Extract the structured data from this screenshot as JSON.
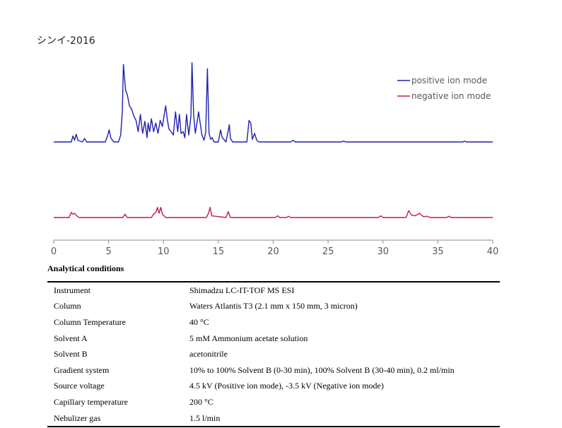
{
  "chart_data": {
    "type": "line",
    "title": "シンイ-2016",
    "xlabel": "",
    "ylabel": "",
    "xlim": [
      0,
      40
    ],
    "x_ticks": [
      0,
      5,
      10,
      15,
      20,
      25,
      30,
      35,
      40
    ],
    "grid": false,
    "legend_position": "top-right",
    "series": [
      {
        "name": "positive ion mode",
        "color": "#1f1fb4",
        "x": [
          0,
          1.6,
          1.75,
          1.9,
          2.05,
          2.2,
          2.6,
          2.8,
          3.0,
          4.7,
          4.9,
          5.05,
          5.2,
          5.35,
          5.5,
          5.9,
          6.1,
          6.25,
          6.35,
          6.45,
          6.55,
          6.7,
          6.9,
          7.1,
          7.3,
          7.5,
          7.7,
          7.9,
          8.0,
          8.1,
          8.3,
          8.5,
          8.6,
          8.75,
          8.9,
          9.1,
          9.3,
          9.5,
          9.7,
          9.9,
          10.05,
          10.2,
          10.35,
          10.5,
          10.7,
          10.9,
          11.1,
          11.3,
          11.45,
          11.6,
          11.8,
          11.95,
          12.1,
          12.3,
          12.5,
          12.6,
          12.75,
          12.9,
          13.05,
          13.2,
          13.5,
          13.7,
          13.85,
          14.0,
          14.15,
          14.3,
          14.45,
          14.6,
          15.0,
          15.2,
          15.35,
          15.5,
          15.7,
          16.0,
          16.1,
          16.3,
          16.5,
          17.2,
          17.6,
          17.8,
          17.95,
          18.1,
          18.3,
          18.5,
          18.7,
          21.6,
          21.8,
          22.0,
          26.2,
          26.4,
          26.6,
          37.3,
          37.4,
          37.6,
          40
        ],
        "values": [
          0,
          0,
          0.07,
          0.02,
          0.09,
          0.02,
          0,
          0.04,
          0,
          0,
          0.07,
          0.14,
          0.05,
          0.02,
          0,
          0,
          0.08,
          0.35,
          0.9,
          0.75,
          0.6,
          0.55,
          0.42,
          0.38,
          0.3,
          0.25,
          0.12,
          0.32,
          0.2,
          0.1,
          0.24,
          0.05,
          0.22,
          0.12,
          0.27,
          0.12,
          0.22,
          0.1,
          0.25,
          0.18,
          0.3,
          0.42,
          0.26,
          0.15,
          0.12,
          0.08,
          0.35,
          0.12,
          0.32,
          0.1,
          0.12,
          0.05,
          0.32,
          0.08,
          0.3,
          0.92,
          0.32,
          0.1,
          0.22,
          0.35,
          0.08,
          0.02,
          0.12,
          0.85,
          0.1,
          0.03,
          0.05,
          0,
          0,
          0.14,
          0.05,
          0.03,
          0,
          0.2,
          0.04,
          0,
          0,
          0,
          0,
          0.25,
          0.22,
          0.03,
          0.1,
          0.02,
          0,
          0,
          0.02,
          0,
          0,
          0.01,
          0,
          0,
          0.01,
          0,
          0
        ]
      },
      {
        "name": "negative ion mode",
        "color": "#c2185b",
        "x": [
          0,
          1.4,
          1.6,
          1.75,
          1.9,
          2.1,
          2.3,
          6.3,
          6.5,
          6.7,
          8.9,
          9.1,
          9.3,
          9.45,
          9.6,
          9.75,
          9.9,
          10.2,
          13.9,
          14.1,
          14.25,
          14.4,
          15.7,
          15.9,
          16.1,
          20.2,
          20.4,
          20.6,
          21.2,
          21.4,
          21.6,
          29.6,
          29.8,
          30.0,
          32.1,
          32.35,
          32.6,
          32.9,
          33.2,
          33.35,
          33.5,
          33.7,
          34.0,
          34.3,
          35.8,
          36.0,
          36.2,
          40
        ],
        "values": [
          0,
          0,
          0.06,
          0.04,
          0.05,
          0.02,
          0,
          0,
          0.04,
          0,
          0,
          0.04,
          0.06,
          0.12,
          0.05,
          0.12,
          0.04,
          0,
          0,
          0.05,
          0.12,
          0.02,
          0,
          0.07,
          0,
          0,
          0.02,
          0,
          0,
          0.015,
          0,
          0,
          0.02,
          0,
          0,
          0.08,
          0.03,
          0.02,
          0.04,
          0.05,
          0.03,
          0.01,
          0.015,
          0,
          0,
          0.015,
          0,
          0
        ]
      }
    ]
  },
  "conditions": {
    "title": "Analytical conditions",
    "rows": [
      {
        "label": "Instrument",
        "value": "Shimadzu LC-IT-TOF MS ESI"
      },
      {
        "label": "Column",
        "value": "Waters Atlantis T3 (2.1 mm x 150 mm, 3 micron)"
      },
      {
        "label": "Column Temperature",
        "value": "40 °C"
      },
      {
        "label": "Solvent A",
        "value": "5 mM Ammonium acetate solution"
      },
      {
        "label": "Solvent B",
        "value": "acetonitrile"
      },
      {
        "label": "Gradient system",
        "value": "10% to 100% Solvent B (0-30 min), 100% Solvent B (30-40 min), 0.2 ml/min"
      },
      {
        "label": "Source voltage",
        "value": "4.5 kV (Positive ion mode), -3.5 kV (Negative ion mode)"
      },
      {
        "label": "Capillary temperature",
        "value": "200 °C"
      },
      {
        "label": "Nebulizer gas",
        "value": "1.5 l/min"
      }
    ]
  }
}
